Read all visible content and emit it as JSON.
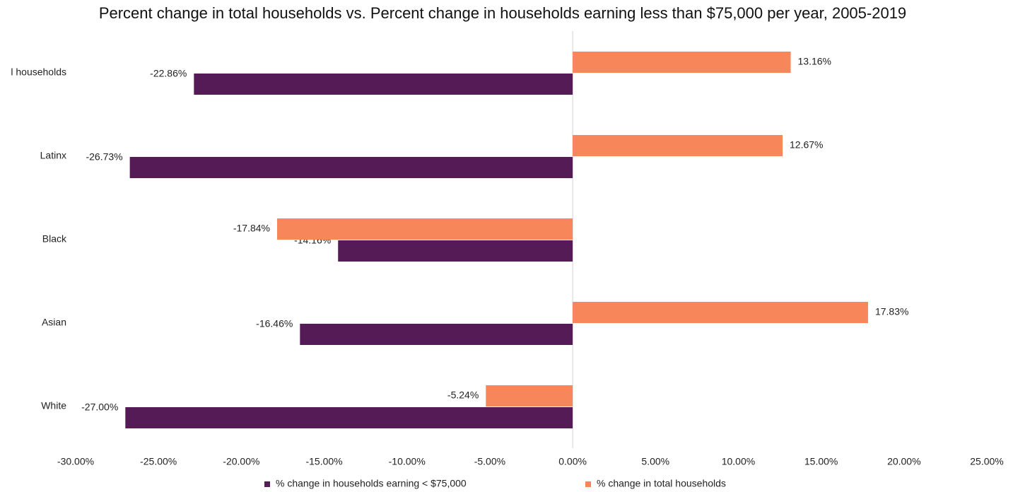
{
  "chart_data": {
    "type": "barh",
    "title": "Percent change in total households vs. Percent change in households earning less than $75,000 per year, 2005-2019",
    "categories": [
      "l households",
      "Latinx",
      "Black",
      "Asian",
      "White"
    ],
    "series": [
      {
        "name": "% change in households earning < $75,000",
        "color": "#541b56",
        "values": [
          -22.86,
          -26.73,
          -14.16,
          -16.46,
          -27.0
        ],
        "value_labels": [
          "-22.86%",
          "-26.73%",
          "-14.16%",
          "-16.46%",
          "-27.00%"
        ]
      },
      {
        "name": "% change in total households",
        "color": "#f7865a",
        "values": [
          13.16,
          12.67,
          -17.84,
          17.83,
          -5.24
        ],
        "value_labels": [
          "13.16%",
          "12.67%",
          "-17.84%",
          "17.83%",
          "-5.24%"
        ]
      }
    ],
    "xlim": [
      -30,
      25
    ],
    "xticks": [
      {
        "value": -30,
        "label": "-30.00%"
      },
      {
        "value": -25,
        "label": "-25.00%"
      },
      {
        "value": -20,
        "label": "-20.00%"
      },
      {
        "value": -15,
        "label": "-15.00%"
      },
      {
        "value": -10,
        "label": "-10.00%"
      },
      {
        "value": -5,
        "label": "-5.00%"
      },
      {
        "value": 0,
        "label": "0.00%"
      },
      {
        "value": 5,
        "label": "5.00%"
      },
      {
        "value": 10,
        "label": "10.00%"
      },
      {
        "value": 15,
        "label": "15.00%"
      },
      {
        "value": 20,
        "label": "20.00%"
      },
      {
        "value": 25,
        "label": "25.00%"
      }
    ],
    "legend": "bottom"
  }
}
